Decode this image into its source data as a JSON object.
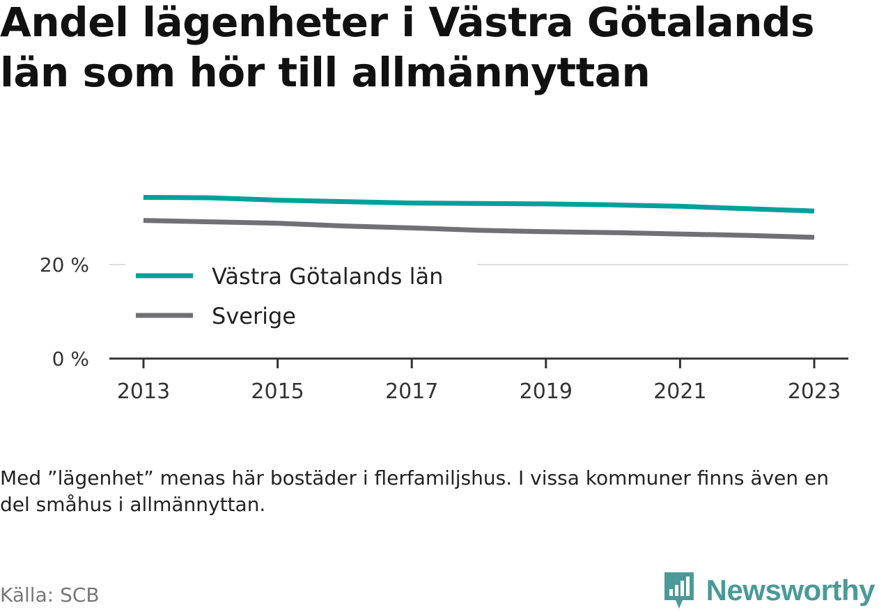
{
  "title": "Andel lägenheter i Västra Götalands län som hör till allmännyttan",
  "note": "Med ”lägenhet” menas här bostäder i flerfamiljshus. I vissa kommuner finns även en del småhus i allmännyttan.",
  "source": "Källa: SCB",
  "brand": "Newsworthy",
  "chart_data": {
    "type": "line",
    "x": [
      2013,
      2014,
      2015,
      2016,
      2017,
      2018,
      2019,
      2020,
      2021,
      2022,
      2023
    ],
    "x_tick_labels": [
      "2013",
      "2015",
      "2017",
      "2019",
      "2021",
      "2023"
    ],
    "y_ticks": [
      0,
      20
    ],
    "y_tick_labels": [
      "0 %",
      "20 %"
    ],
    "ylim": [
      0,
      40
    ],
    "grid": true,
    "legend_position": "center-left",
    "series": [
      {
        "name": "Västra Götalands län",
        "color": "#00a19a",
        "values": [
          34.3,
          34.2,
          33.7,
          33.4,
          33.1,
          33.0,
          32.9,
          32.7,
          32.4,
          31.9,
          31.4
        ]
      },
      {
        "name": "Sverige",
        "color": "#707075",
        "values": [
          29.4,
          29.1,
          28.8,
          28.2,
          27.8,
          27.3,
          27.0,
          26.8,
          26.5,
          26.2,
          25.8
        ]
      }
    ]
  }
}
